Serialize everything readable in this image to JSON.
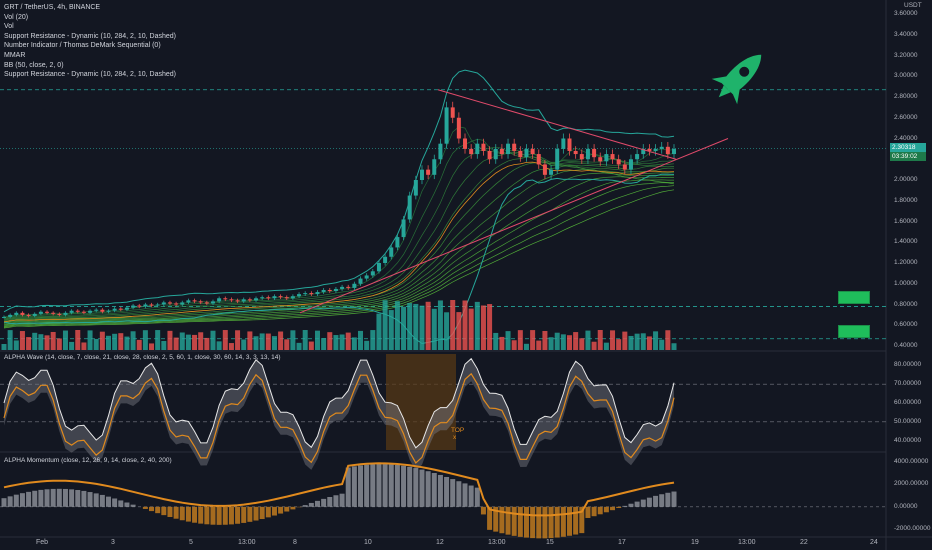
{
  "header": {
    "symbol": "GRT / TetherUS, 4h, BINANCE",
    "indicators": [
      "Vol (20)",
      "Vol",
      "Support Resistance - Dynamic (10, 284, 2, 10, Dashed)",
      "Number Indicator / Thomas DeMark Sequential (0)",
      "MMAR",
      "BB (50, close, 2, 0)",
      "Support Resistance - Dynamic (10, 284, 2, 10, Dashed)"
    ]
  },
  "price_axis": {
    "currency": "USDT",
    "ticks": [
      "3.60000",
      "3.40000",
      "3.20000",
      "3.00000",
      "2.80000",
      "2.60000",
      "2.40000",
      "2.20000",
      "2.00000",
      "1.80000",
      "1.60000",
      "1.40000",
      "1.20000",
      "1.00000",
      "0.80000",
      "0.60000",
      "0.40000"
    ],
    "last_price": "2.30318",
    "countdown": "03:39:02"
  },
  "wave_pane": {
    "label": "ALPHA Wave (14, close, 7, close, 21, close, 28, close, 2, 5, 60, 1, close, 30, 60, 14, 3, 3, 13, 14)",
    "ticks": [
      "80.00000",
      "70.00000",
      "60.00000",
      "50.00000",
      "40.00000"
    ],
    "top_marker": "TOP",
    "top_cross": "x"
  },
  "momentum_pane": {
    "label": "ALPHA Momentum (close, 12, 26, 9, 14, close, 2, 40, 200)",
    "ticks": [
      "4000.00000",
      "2000.00000",
      "0.00000",
      "-2000.00000"
    ]
  },
  "time_axis": {
    "labels": [
      "Feb",
      "3",
      "5",
      "13:00",
      "8",
      "10",
      "12",
      "13:00",
      "15",
      "17",
      "19",
      "13:00",
      "22",
      "24"
    ]
  },
  "colors": {
    "background": "#131722",
    "up": "#26a69a",
    "down": "#ef5350",
    "wave_orange": "#e08a1e",
    "trend_red": "#e04a6a",
    "rocket": "#1fb36b"
  },
  "chart_data": {
    "type": "candlestick",
    "title": "GRT / TetherUS, 4h, BINANCE",
    "y_range": [
      0.4,
      3.6
    ],
    "x_labels": [
      "Feb",
      "3",
      "5",
      "13:00",
      "8",
      "10",
      "12",
      "13:00",
      "15",
      "17",
      "19",
      "13:00",
      "22",
      "24"
    ],
    "resistance_levels": [
      2.87,
      0.78,
      0.47
    ],
    "close_path": [
      0.68,
      0.7,
      0.72,
      0.7,
      0.69,
      0.71,
      0.73,
      0.72,
      0.71,
      0.7,
      0.72,
      0.74,
      0.73,
      0.72,
      0.74,
      0.75,
      0.73,
      0.74,
      0.76,
      0.75,
      0.77,
      0.79,
      0.78,
      0.8,
      0.79,
      0.8,
      0.82,
      0.81,
      0.8,
      0.82,
      0.84,
      0.83,
      0.82,
      0.81,
      0.83,
      0.86,
      0.85,
      0.84,
      0.83,
      0.85,
      0.84,
      0.86,
      0.87,
      0.86,
      0.88,
      0.87,
      0.86,
      0.88,
      0.9,
      0.91,
      0.9,
      0.92,
      0.94,
      0.93,
      0.95,
      0.97,
      0.96,
      1.0,
      1.05,
      1.08,
      1.12,
      1.2,
      1.26,
      1.35,
      1.45,
      1.62,
      1.85,
      2.0,
      2.1,
      2.05,
      2.2,
      2.35,
      2.7,
      2.6,
      2.4,
      2.3,
      2.25,
      2.35,
      2.28,
      2.2,
      2.3,
      2.25,
      2.35,
      2.28,
      2.22,
      2.3,
      2.25,
      2.15,
      2.05,
      2.1,
      2.3,
      2.4,
      2.28,
      2.25,
      2.2,
      2.3,
      2.22,
      2.18,
      2.25,
      2.2,
      2.15,
      2.1,
      2.2,
      2.25,
      2.3,
      2.28,
      2.3,
      2.32,
      2.25,
      2.3
    ]
  }
}
